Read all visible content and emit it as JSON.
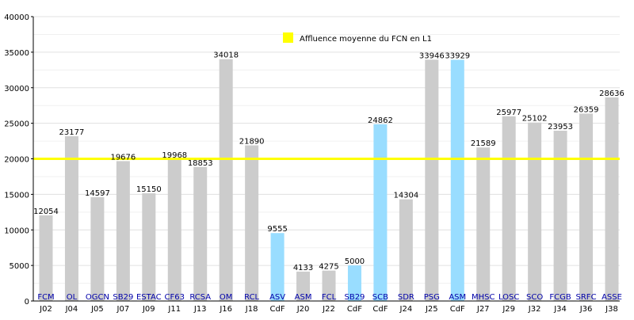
{
  "chart_data": {
    "type": "bar",
    "title": "",
    "xlabel": "",
    "ylabel": "",
    "ylim": [
      0,
      40000
    ],
    "yticks": [
      0,
      5000,
      10000,
      15000,
      20000,
      25000,
      30000,
      35000,
      40000
    ],
    "grid": true,
    "legend": {
      "position": "top-right",
      "entries": [
        {
          "label": "Affluence moyenne du FCN en L1",
          "color": "#ffff00"
        }
      ]
    },
    "reference_line": {
      "value": 20000,
      "color": "#ffff00"
    },
    "colors": {
      "league": "#cccccc",
      "cup": "#99ddff",
      "team_label": "#0000aa"
    },
    "bars": [
      {
        "round": "J02",
        "team": "FCM",
        "value": 12054,
        "cup": false
      },
      {
        "round": "J04",
        "team": "OL",
        "value": 23177,
        "cup": false
      },
      {
        "round": "J05",
        "team": "OGCN",
        "value": 14597,
        "cup": false
      },
      {
        "round": "J07",
        "team": "SB29",
        "value": 19676,
        "cup": false
      },
      {
        "round": "J09",
        "team": "ESTAC",
        "value": 15150,
        "cup": false
      },
      {
        "round": "J11",
        "team": "CF63",
        "value": 19968,
        "cup": false
      },
      {
        "round": "J13",
        "team": "RCSA",
        "value": 18853,
        "cup": false
      },
      {
        "round": "J16",
        "team": "OM",
        "value": 34018,
        "cup": false
      },
      {
        "round": "J18",
        "team": "RCL",
        "value": 21890,
        "cup": false
      },
      {
        "round": "CdF",
        "team": "ASV",
        "value": 9555,
        "cup": true
      },
      {
        "round": "J20",
        "team": "ASM",
        "value": 4133,
        "cup": false
      },
      {
        "round": "J22",
        "team": "FCL",
        "value": 4275,
        "cup": false
      },
      {
        "round": "CdF",
        "team": "SB29",
        "value": 5000,
        "cup": true
      },
      {
        "round": "CdF",
        "team": "SCB",
        "value": 24862,
        "cup": true
      },
      {
        "round": "J24",
        "team": "SDR",
        "value": 14304,
        "cup": false
      },
      {
        "round": "J25",
        "team": "PSG",
        "value": 33946,
        "cup": false
      },
      {
        "round": "CdF",
        "team": "ASM",
        "value": 33929,
        "cup": true
      },
      {
        "round": "J27",
        "team": "MHSC",
        "value": 21589,
        "cup": false
      },
      {
        "round": "J29",
        "team": "LOSC",
        "value": 25977,
        "cup": false
      },
      {
        "round": "J32",
        "team": "SCO",
        "value": 25102,
        "cup": false
      },
      {
        "round": "J34",
        "team": "FCGB",
        "value": 23953,
        "cup": false
      },
      {
        "round": "J36",
        "team": "SRFC",
        "value": 26359,
        "cup": false
      },
      {
        "round": "J38",
        "team": "ASSE",
        "value": 28636,
        "cup": false
      }
    ]
  }
}
